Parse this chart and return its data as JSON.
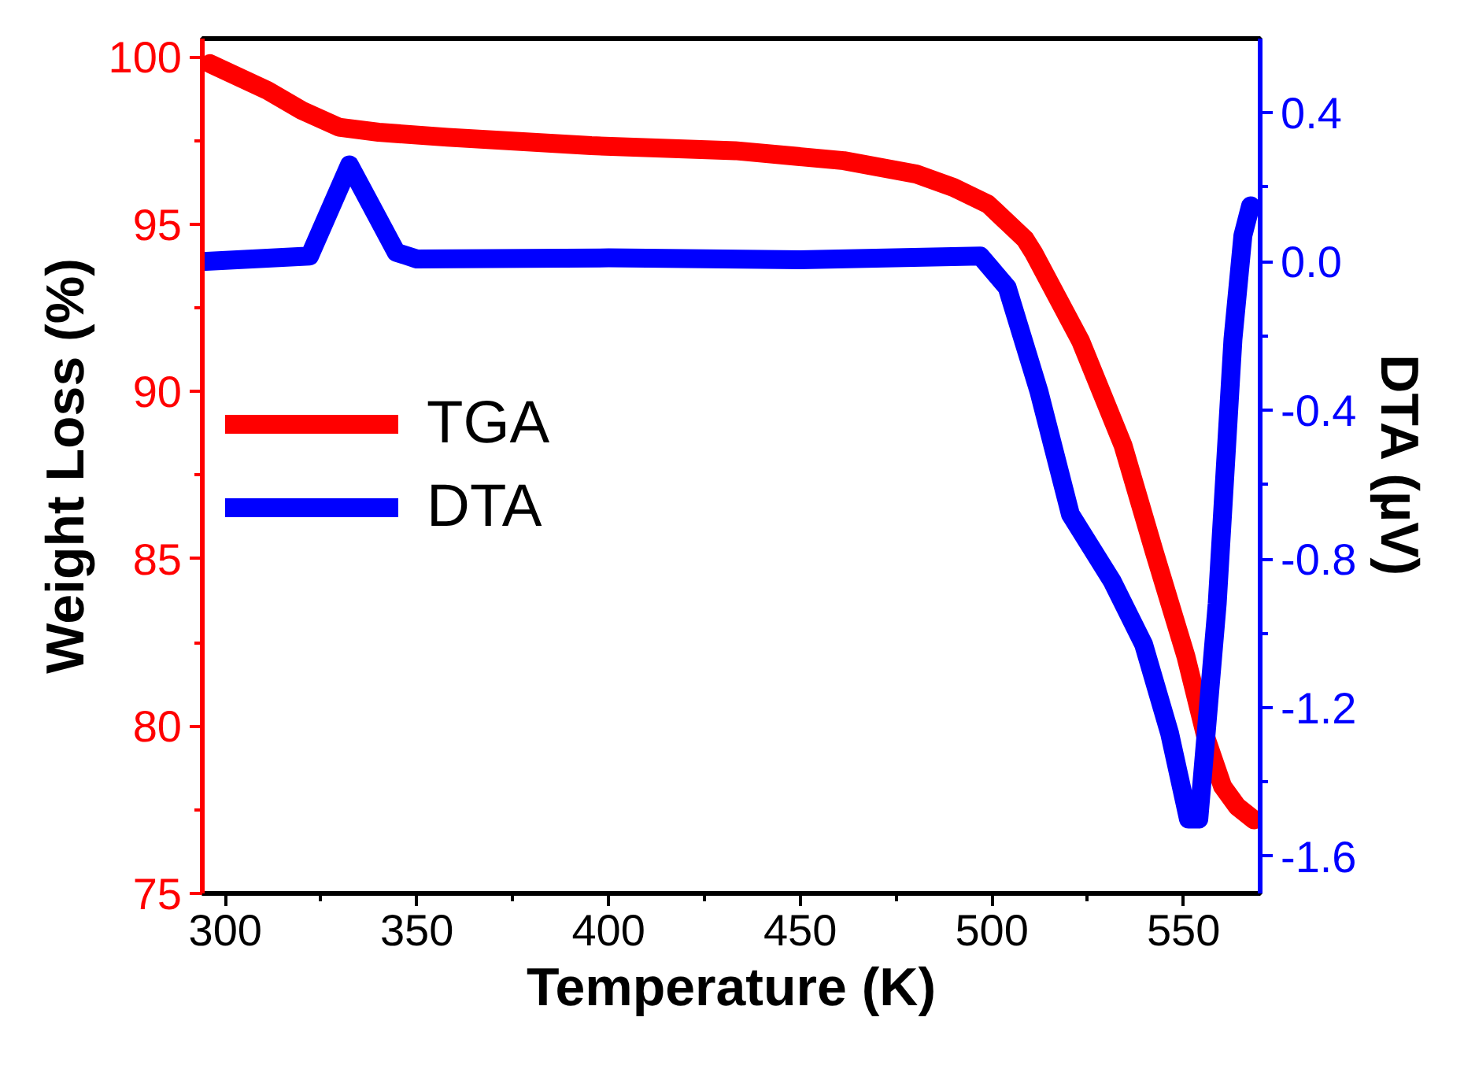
{
  "chart_data": {
    "type": "line",
    "xlabel": "Temperature (K)",
    "ylabel": "Weight Loss (%)",
    "y2label": "DTA (µV)",
    "xlim": [
      294,
      570
    ],
    "xticks": [
      300,
      350,
      400,
      450,
      500,
      550
    ],
    "ylim": [
      75,
      100.55
    ],
    "yticks": [
      75,
      80,
      85,
      90,
      95,
      100
    ],
    "y2lim": [
      -1.7,
      0.6
    ],
    "y2ticks": [
      {
        "value": -1.6,
        "label": "-1.6"
      },
      {
        "value": -1.2,
        "label": "-1.2"
      },
      {
        "value": -0.8,
        "label": "-0.8"
      },
      {
        "value": -0.4,
        "label": "-0.4"
      },
      {
        "value": 0,
        "label": "0.0"
      },
      {
        "value": 0.4,
        "label": "0.4"
      }
    ],
    "grid": false,
    "legend": "left",
    "marker": "none",
    "line_style": "solid",
    "series": [
      {
        "name": "TGA",
        "color": "#ff0000",
        "x": [
          296,
          311,
          320,
          329.7,
          340,
          358,
          395.5,
          433,
          461.4,
          480.3,
          490,
          499,
          508.7,
          510.9,
          523.2,
          534.2,
          542.4,
          550.6,
          556,
          560.2,
          564,
          568.4
        ],
        "values": [
          99.8,
          99.0,
          98.4,
          97.9,
          97.75,
          97.6,
          97.35,
          97.2,
          96.9,
          96.5,
          96.1,
          95.6,
          94.55,
          94.15,
          91.5,
          88.4,
          85.2,
          82.1,
          79.6,
          78.2,
          77.6,
          77.2
        ]
      },
      {
        "name": "DTA",
        "color": "#0000ff",
        "axis": "y2",
        "x": [
          294,
          322,
          332.4,
          344.6,
          350,
          400,
          450,
          497,
          504,
          512.3,
          520.5,
          531.4,
          539.6,
          546.4,
          551.3,
          554,
          558.8,
          562.9,
          565.5,
          567.5
        ],
        "values": [
          0.0,
          0.015,
          0.26,
          0.025,
          0.007,
          0.01,
          0.005,
          0.015,
          -0.07,
          -0.35,
          -0.68,
          -0.86,
          -1.03,
          -1.27,
          -1.5,
          -1.5,
          -0.92,
          -0.21,
          0.07,
          0.15
        ]
      }
    ]
  }
}
